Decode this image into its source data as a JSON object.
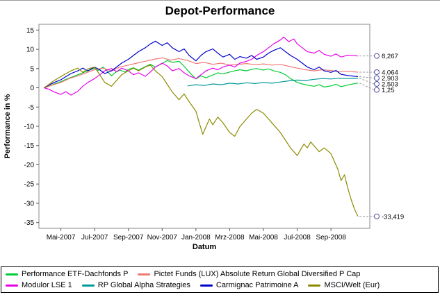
{
  "chart_data": {
    "type": "line",
    "title": "Depot-Performance",
    "xlabel": "Datum",
    "ylabel": "Performance in %",
    "ylim": [
      -35,
      15
    ],
    "grid": false,
    "legend_position": "bottom",
    "y_ticks": [
      15,
      10,
      5,
      0,
      -5,
      -10,
      -15,
      -20,
      -25,
      -30,
      -35
    ],
    "x_ticks": [
      {
        "x": 1,
        "label": "Mai-2007"
      },
      {
        "x": 3,
        "label": "Jul-2007"
      },
      {
        "x": 5,
        "label": "Sep-2007"
      },
      {
        "x": 7,
        "label": "Nov-2007"
      },
      {
        "x": 9,
        "label": "Jan-2008"
      },
      {
        "x": 11,
        "label": "Mrz-2008"
      },
      {
        "x": 13,
        "label": "Mai-2008"
      },
      {
        "x": 15,
        "label": "Jul-2008"
      },
      {
        "x": 17,
        "label": "Sep-2008"
      }
    ],
    "annotation_label_color": "#4d4d9e",
    "annotation_line_color": "#999999",
    "series": [
      {
        "name": "Performance ETF-Dachfonds P",
        "color": "#00cc33",
        "end_label": "1,25",
        "points": [
          [
            0,
            0
          ],
          [
            0.3,
            0.4
          ],
          [
            0.6,
            1.0
          ],
          [
            1,
            1.6
          ],
          [
            1.3,
            2.2
          ],
          [
            1.6,
            2.7
          ],
          [
            2,
            3.4
          ],
          [
            2.3,
            3.9
          ],
          [
            2.6,
            4.4
          ],
          [
            3,
            5.1
          ],
          [
            3.2,
            4.5
          ],
          [
            3.5,
            5.4
          ],
          [
            3.8,
            4.1
          ],
          [
            4,
            3.1
          ],
          [
            4.2,
            3.9
          ],
          [
            4.5,
            4.6
          ],
          [
            4.8,
            4.1
          ],
          [
            5,
            4.8
          ],
          [
            5.3,
            5.2
          ],
          [
            5.6,
            4.6
          ],
          [
            6,
            5.5
          ],
          [
            6.3,
            6.1
          ],
          [
            6.6,
            5.4
          ],
          [
            7,
            6.3
          ],
          [
            7.3,
            7.1
          ],
          [
            7.6,
            6.6
          ],
          [
            8,
            6.9
          ],
          [
            8.3,
            5.6
          ],
          [
            8.6,
            4.1
          ],
          [
            9,
            2.3
          ],
          [
            9.3,
            3.1
          ],
          [
            9.6,
            2.6
          ],
          [
            10,
            3.3
          ],
          [
            10.3,
            3.9
          ],
          [
            10.6,
            3.6
          ],
          [
            11,
            4.1
          ],
          [
            11.3,
            4.4
          ],
          [
            11.6,
            4.7
          ],
          [
            12,
            4.4
          ],
          [
            12.3,
            4.8
          ],
          [
            12.6,
            5.0
          ],
          [
            13,
            4.6
          ],
          [
            13.3,
            4.9
          ],
          [
            13.6,
            4.4
          ],
          [
            14,
            4.0
          ],
          [
            14.3,
            3.4
          ],
          [
            14.6,
            2.4
          ],
          [
            15,
            1.4
          ],
          [
            15.3,
            1.0
          ],
          [
            15.6,
            0.7
          ],
          [
            16,
            0.4
          ],
          [
            16.3,
            0.8
          ],
          [
            16.6,
            0.2
          ],
          [
            17,
            0.5
          ],
          [
            17.3,
            0.9
          ],
          [
            17.6,
            0.3
          ],
          [
            18,
            0.7
          ],
          [
            18.3,
            1.0
          ],
          [
            18.6,
            1.25
          ]
        ]
      },
      {
        "name": "Pictet Funds (LUX) Absolute Return Global Diversified P Cap",
        "color": "#f07878",
        "end_label": "4,064",
        "points": [
          [
            0,
            0
          ],
          [
            0.5,
            0.7
          ],
          [
            1,
            1.4
          ],
          [
            1.5,
            2.4
          ],
          [
            2,
            3.1
          ],
          [
            2.5,
            3.9
          ],
          [
            3,
            4.7
          ],
          [
            3.5,
            5.1
          ],
          [
            4,
            4.4
          ],
          [
            4.5,
            5.4
          ],
          [
            5,
            5.9
          ],
          [
            5.5,
            6.4
          ],
          [
            6,
            6.9
          ],
          [
            6.5,
            7.4
          ],
          [
            7,
            7.8
          ],
          [
            7.5,
            7.2
          ],
          [
            8,
            7.6
          ],
          [
            8.5,
            7.1
          ],
          [
            9,
            6.3
          ],
          [
            9.5,
            6.6
          ],
          [
            10,
            6.1
          ],
          [
            10.5,
            6.4
          ],
          [
            11,
            5.9
          ],
          [
            11.5,
            6.1
          ],
          [
            12,
            6.3
          ],
          [
            12.5,
            6.0
          ],
          [
            13,
            6.2
          ],
          [
            13.5,
            5.9
          ],
          [
            14,
            6.1
          ],
          [
            14.5,
            5.6
          ],
          [
            15,
            5.1
          ],
          [
            15.5,
            4.7
          ],
          [
            16,
            4.4
          ],
          [
            16.5,
            4.7
          ],
          [
            17,
            4.5
          ],
          [
            17.5,
            4.2
          ],
          [
            18,
            4.3
          ],
          [
            18.6,
            4.064
          ]
        ]
      },
      {
        "name": "Modulor LSE 1",
        "color": "#e800e8",
        "end_label": "8,267",
        "points": [
          [
            0,
            0
          ],
          [
            0.3,
            -0.4
          ],
          [
            0.6,
            -1.1
          ],
          [
            1,
            -1.7
          ],
          [
            1.3,
            -1.0
          ],
          [
            1.6,
            -1.9
          ],
          [
            2,
            -0.9
          ],
          [
            2.3,
            0.4
          ],
          [
            2.6,
            1.4
          ],
          [
            3,
            2.4
          ],
          [
            3.3,
            3.4
          ],
          [
            3.6,
            4.4
          ],
          [
            4,
            5.0
          ],
          [
            4.3,
            4.2
          ],
          [
            4.6,
            5.1
          ],
          [
            5,
            4.4
          ],
          [
            5.3,
            3.4
          ],
          [
            5.6,
            3.9
          ],
          [
            6,
            3.0
          ],
          [
            6.3,
            4.1
          ],
          [
            6.6,
            5.4
          ],
          [
            7,
            6.4
          ],
          [
            7.3,
            5.7
          ],
          [
            7.6,
            4.4
          ],
          [
            8,
            5.0
          ],
          [
            8.3,
            3.9
          ],
          [
            8.6,
            3.1
          ],
          [
            9,
            2.4
          ],
          [
            9.3,
            3.4
          ],
          [
            9.6,
            4.4
          ],
          [
            10,
            5.1
          ],
          [
            10.3,
            4.7
          ],
          [
            10.6,
            5.4
          ],
          [
            11,
            5.9
          ],
          [
            11.3,
            5.4
          ],
          [
            11.6,
            6.4
          ],
          [
            12,
            6.9
          ],
          [
            12.3,
            7.4
          ],
          [
            12.6,
            8.4
          ],
          [
            13,
            9.4
          ],
          [
            13.3,
            10.4
          ],
          [
            13.6,
            11.4
          ],
          [
            14,
            12.4
          ],
          [
            14.2,
            13.2
          ],
          [
            14.5,
            12.0
          ],
          [
            14.8,
            12.7
          ],
          [
            15,
            11.4
          ],
          [
            15.3,
            10.4
          ],
          [
            15.6,
            9.4
          ],
          [
            16,
            9.0
          ],
          [
            16.3,
            9.7
          ],
          [
            16.6,
            8.7
          ],
          [
            17,
            8.2
          ],
          [
            17.3,
            8.8
          ],
          [
            17.6,
            8.0
          ],
          [
            18,
            8.5
          ],
          [
            18.6,
            8.267
          ]
        ]
      },
      {
        "name": "RP Global Alpha Strategies",
        "color": "#009999",
        "end_label": "2,503",
        "points": [
          [
            8.5,
            0.5
          ],
          [
            9,
            0.8
          ],
          [
            9.5,
            0.6
          ],
          [
            10,
            1.0
          ],
          [
            10.5,
            0.8
          ],
          [
            11,
            1.2
          ],
          [
            11.5,
            1.0
          ],
          [
            12,
            1.3
          ],
          [
            12.5,
            1.1
          ],
          [
            13,
            1.4
          ],
          [
            13.5,
            1.2
          ],
          [
            14,
            1.5
          ],
          [
            14.5,
            1.8
          ],
          [
            15,
            2.0
          ],
          [
            15.5,
            1.9
          ],
          [
            16,
            2.2
          ],
          [
            16.5,
            2.4
          ],
          [
            17,
            2.3
          ],
          [
            17.5,
            2.5
          ],
          [
            18,
            2.4
          ],
          [
            18.6,
            2.503
          ]
        ]
      },
      {
        "name": "Carmignac Patrimoine A",
        "color": "#0000cc",
        "end_label": "2,903",
        "points": [
          [
            0,
            0
          ],
          [
            0.3,
            0.7
          ],
          [
            0.6,
            1.4
          ],
          [
            1,
            2.1
          ],
          [
            1.3,
            2.9
          ],
          [
            1.6,
            3.7
          ],
          [
            2,
            4.4
          ],
          [
            2.3,
            5.1
          ],
          [
            2.6,
            4.4
          ],
          [
            3,
            5.4
          ],
          [
            3.3,
            4.7
          ],
          [
            3.6,
            3.7
          ],
          [
            4,
            4.4
          ],
          [
            4.3,
            5.4
          ],
          [
            4.6,
            6.4
          ],
          [
            5,
            7.4
          ],
          [
            5.3,
            8.4
          ],
          [
            5.6,
            9.4
          ],
          [
            6,
            10.4
          ],
          [
            6.3,
            11.4
          ],
          [
            6.6,
            12.1
          ],
          [
            7,
            11.0
          ],
          [
            7.3,
            11.7
          ],
          [
            7.6,
            10.4
          ],
          [
            8,
            9.4
          ],
          [
            8.3,
            10.1
          ],
          [
            8.6,
            8.4
          ],
          [
            9,
            7.0
          ],
          [
            9.3,
            8.4
          ],
          [
            9.6,
            9.4
          ],
          [
            10,
            10.1
          ],
          [
            10.3,
            9.0
          ],
          [
            10.6,
            8.0
          ],
          [
            11,
            8.7
          ],
          [
            11.3,
            7.4
          ],
          [
            11.6,
            8.1
          ],
          [
            12,
            7.7
          ],
          [
            12.3,
            8.4
          ],
          [
            12.6,
            7.4
          ],
          [
            13,
            8.0
          ],
          [
            13.3,
            9.0
          ],
          [
            13.6,
            9.7
          ],
          [
            14,
            10.4
          ],
          [
            14.3,
            9.4
          ],
          [
            14.6,
            8.4
          ],
          [
            15,
            7.4
          ],
          [
            15.3,
            6.4
          ],
          [
            15.6,
            5.4
          ],
          [
            16,
            4.7
          ],
          [
            16.3,
            5.4
          ],
          [
            16.6,
            4.4
          ],
          [
            17,
            4.0
          ],
          [
            17.3,
            4.5
          ],
          [
            17.6,
            3.5
          ],
          [
            18,
            3.2
          ],
          [
            18.6,
            2.903
          ]
        ]
      },
      {
        "name": "MSCI/Welt (Eur)",
        "color": "#8b8b00",
        "end_label": "-33,419",
        "points": [
          [
            0,
            0
          ],
          [
            0.3,
            0.9
          ],
          [
            0.6,
            1.9
          ],
          [
            1,
            2.9
          ],
          [
            1.3,
            3.7
          ],
          [
            1.6,
            4.4
          ],
          [
            2,
            5.1
          ],
          [
            2.3,
            4.0
          ],
          [
            2.6,
            4.9
          ],
          [
            3,
            5.4
          ],
          [
            3.3,
            3.4
          ],
          [
            3.6,
            1.4
          ],
          [
            4,
            0.4
          ],
          [
            4.3,
            1.9
          ],
          [
            4.6,
            3.4
          ],
          [
            5,
            4.4
          ],
          [
            5.3,
            5.1
          ],
          [
            5.6,
            4.4
          ],
          [
            6,
            5.4
          ],
          [
            6.3,
            5.9
          ],
          [
            6.6,
            4.4
          ],
          [
            7,
            2.9
          ],
          [
            7.3,
            0.9
          ],
          [
            7.6,
            -1.1
          ],
          [
            8,
            -3.1
          ],
          [
            8.3,
            -1.6
          ],
          [
            8.6,
            -3.6
          ],
          [
            9,
            -6.1
          ],
          [
            9.2,
            -9.1
          ],
          [
            9.4,
            -12.1
          ],
          [
            9.6,
            -10.1
          ],
          [
            9.8,
            -8.1
          ],
          [
            10,
            -9.6
          ],
          [
            10.3,
            -7.6
          ],
          [
            10.6,
            -9.1
          ],
          [
            11,
            -11.6
          ],
          [
            11.3,
            -12.6
          ],
          [
            11.6,
            -10.1
          ],
          [
            12,
            -8.1
          ],
          [
            12.3,
            -6.6
          ],
          [
            12.6,
            -5.6
          ],
          [
            13,
            -6.6
          ],
          [
            13.3,
            -8.1
          ],
          [
            13.6,
            -9.6
          ],
          [
            14,
            -11.6
          ],
          [
            14.3,
            -13.6
          ],
          [
            14.6,
            -15.6
          ],
          [
            15,
            -17.6
          ],
          [
            15.2,
            -16.1
          ],
          [
            15.4,
            -14.6
          ],
          [
            15.6,
            -15.6
          ],
          [
            15.8,
            -14.1
          ],
          [
            16,
            -15.1
          ],
          [
            16.3,
            -16.6
          ],
          [
            16.6,
            -15.6
          ],
          [
            17,
            -17.1
          ],
          [
            17.2,
            -19.1
          ],
          [
            17.4,
            -21.1
          ],
          [
            17.6,
            -24.1
          ],
          [
            17.8,
            -22.6
          ],
          [
            18,
            -26.1
          ],
          [
            18.2,
            -29.1
          ],
          [
            18.4,
            -31.6
          ],
          [
            18.6,
            -33.419
          ]
        ]
      }
    ]
  }
}
